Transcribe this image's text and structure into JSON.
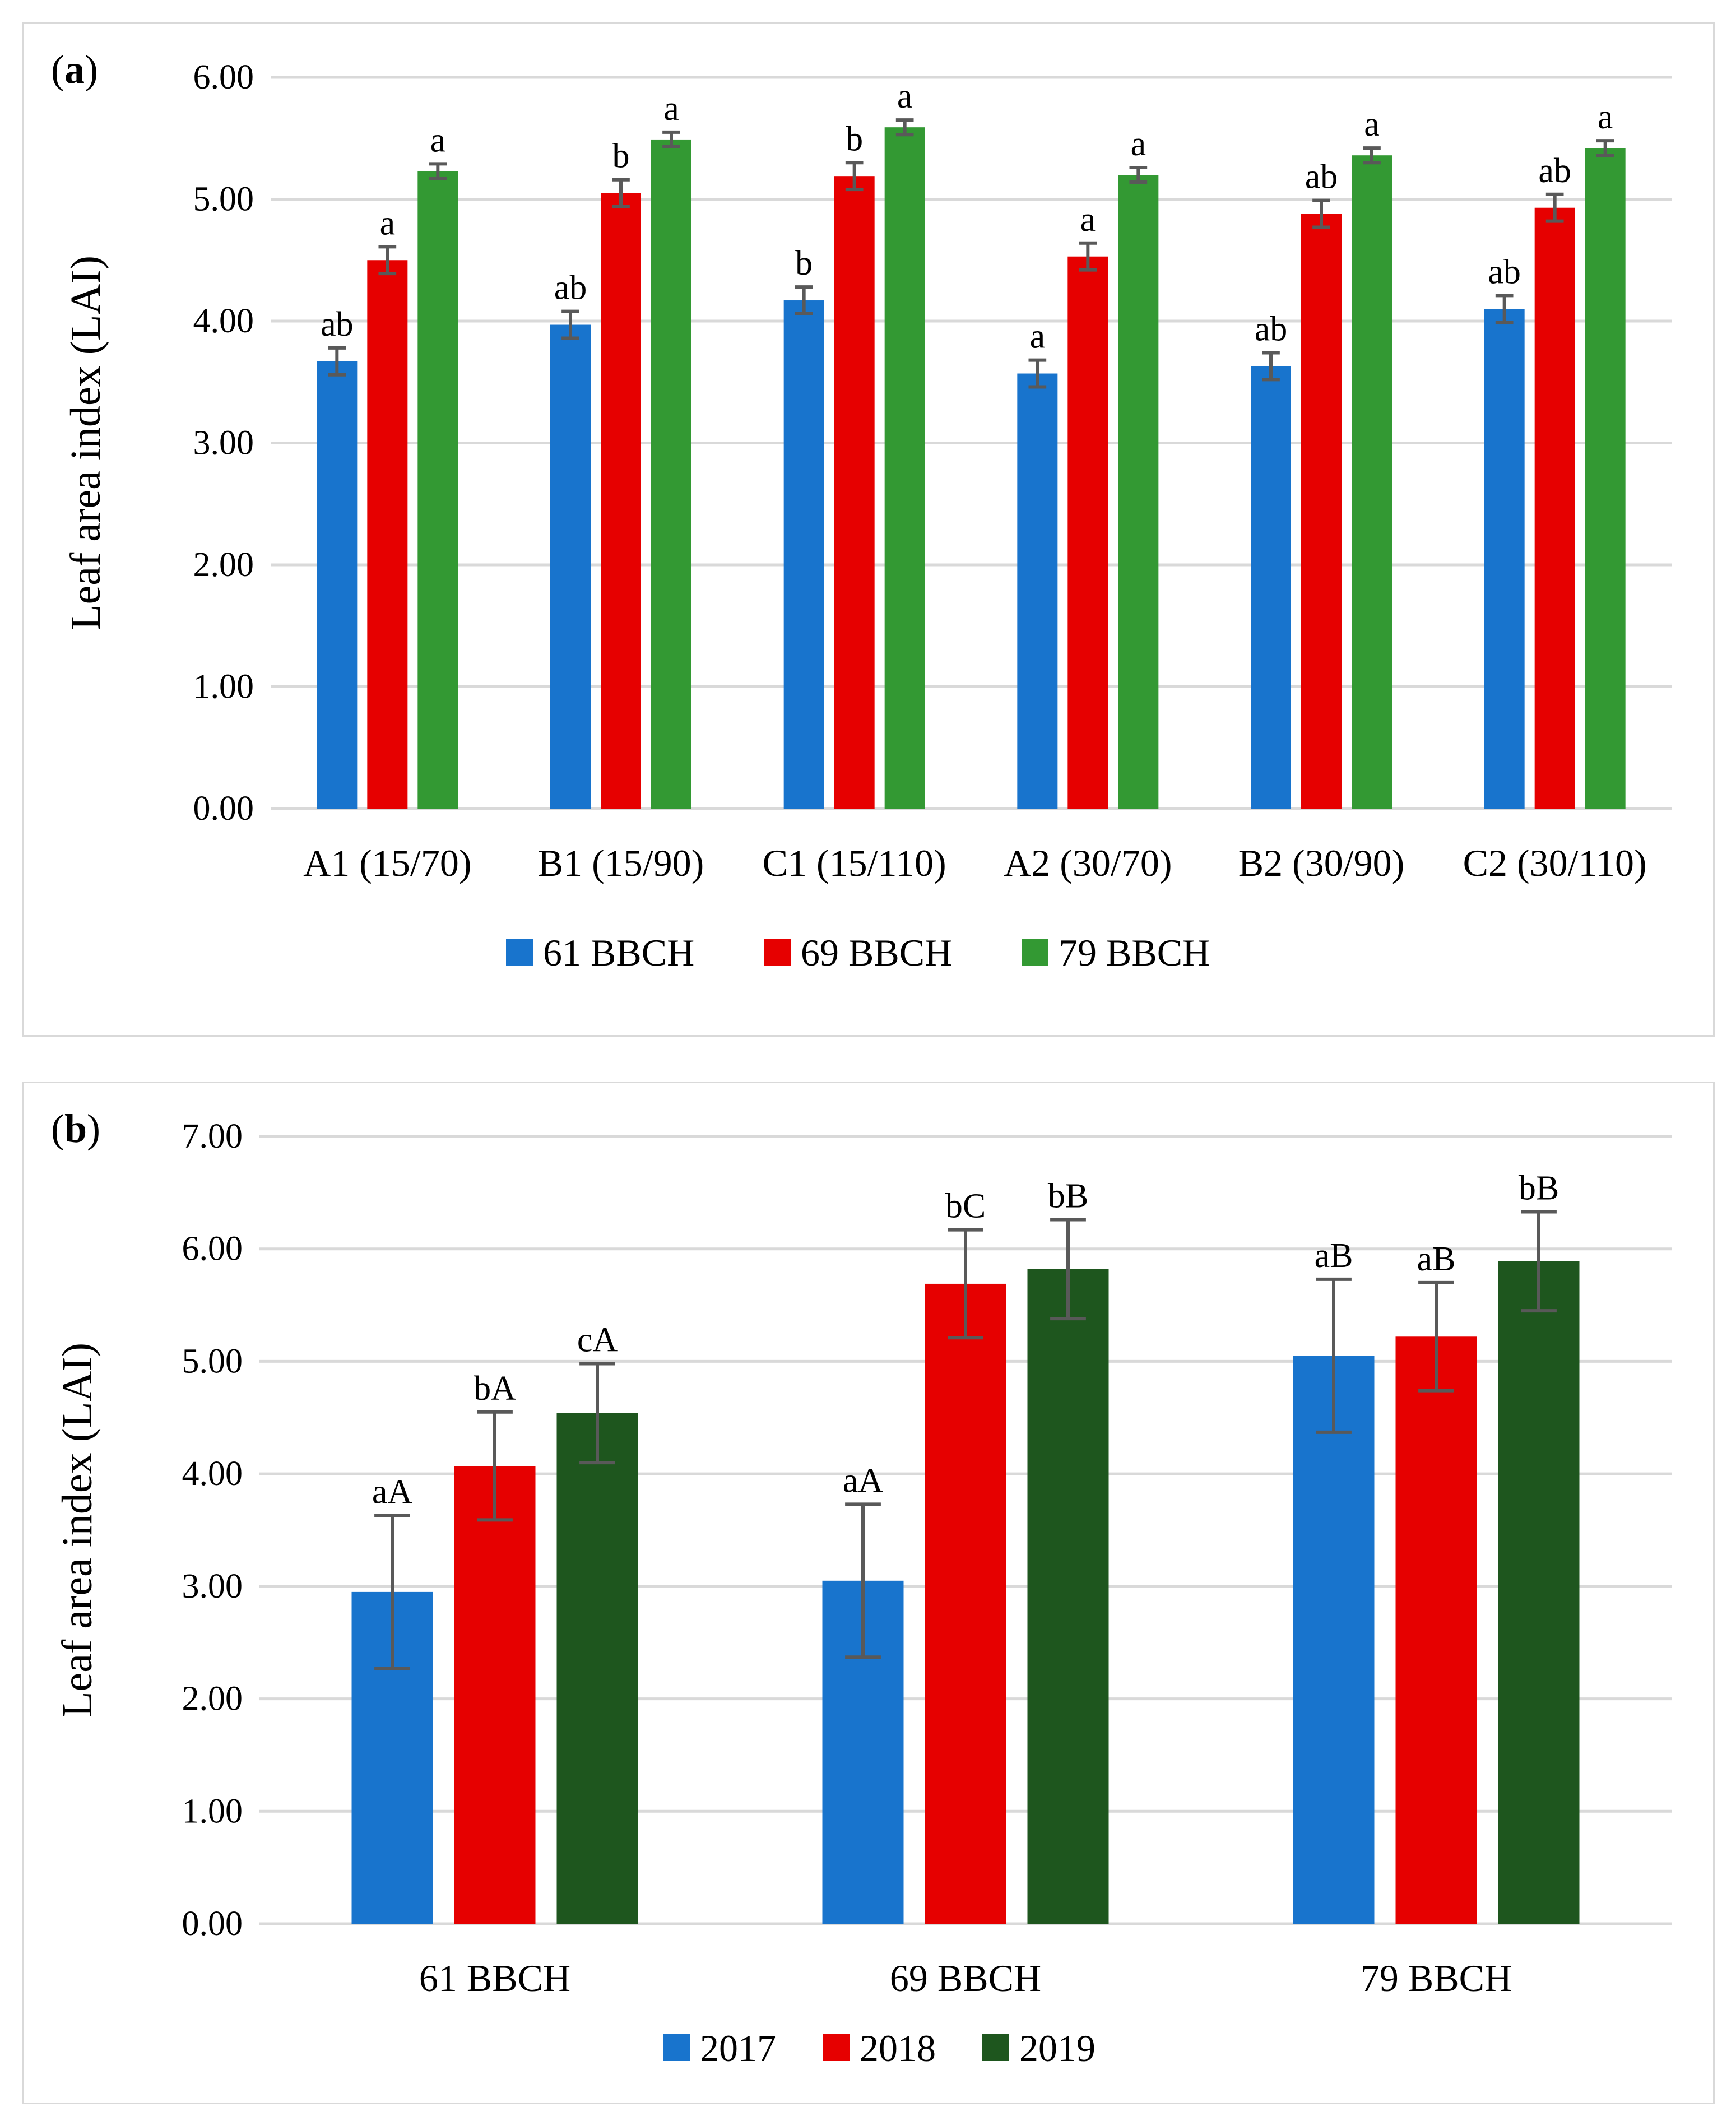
{
  "chart_data": [
    {
      "panel": "a",
      "type": "bar",
      "ylabel": "Leaf area index (LAI)",
      "ylim": [
        0,
        6
      ],
      "yticks": [
        "0.00",
        "1.00",
        "2.00",
        "3.00",
        "4.00",
        "5.00",
        "6.00"
      ],
      "categories": [
        "A1 (15/70)",
        "B1 (15/90)",
        "C1 (15/110)",
        "A2 (30/70)",
        "B2 (30/90)",
        "C2 (30/110)"
      ],
      "series": [
        {
          "name": "61 BBCH",
          "color": "#1874cd",
          "values": [
            3.67,
            3.97,
            4.17,
            3.57,
            3.63,
            4.1
          ],
          "errors": [
            0.11,
            0.11,
            0.11,
            0.11,
            0.11,
            0.11
          ],
          "labels": [
            "ab",
            "ab",
            "b",
            "a",
            "ab",
            "ab"
          ]
        },
        {
          "name": "69 BBCH",
          "color": "#e60000",
          "values": [
            4.5,
            5.05,
            5.19,
            4.53,
            4.88,
            4.93
          ],
          "errors": [
            0.11,
            0.11,
            0.11,
            0.11,
            0.11,
            0.11
          ],
          "labels": [
            "a",
            "b",
            "b",
            "a",
            "ab",
            "ab"
          ]
        },
        {
          "name": "79 BBCH",
          "color": "#339933",
          "values": [
            5.23,
            5.49,
            5.59,
            5.2,
            5.36,
            5.42
          ],
          "errors": [
            0.06,
            0.06,
            0.06,
            0.06,
            0.06,
            0.06
          ],
          "labels": [
            "a",
            "a",
            "a",
            "a",
            "a",
            "a"
          ]
        }
      ],
      "legend_position": "bottom-center"
    },
    {
      "panel": "b",
      "type": "bar",
      "ylabel": "Leaf area index (LAI)",
      "ylim": [
        0,
        7
      ],
      "yticks": [
        "0.00",
        "1.00",
        "2.00",
        "3.00",
        "4.00",
        "5.00",
        "6.00",
        "7.00"
      ],
      "categories": [
        "61 BBCH",
        "69 BBCH",
        "79 BBCH"
      ],
      "series": [
        {
          "name": "2017",
          "color": "#1874cd",
          "values": [
            2.95,
            3.05,
            5.05
          ],
          "errors": [
            0.68,
            0.68,
            0.68
          ],
          "labels": [
            "aA",
            "aA",
            "aB"
          ]
        },
        {
          "name": "2018",
          "color": "#e60000",
          "values": [
            4.07,
            5.69,
            5.22
          ],
          "errors": [
            0.48,
            0.48,
            0.48
          ],
          "labels": [
            "bA",
            "bC",
            "aB"
          ]
        },
        {
          "name": "2019",
          "color": "#1e561e",
          "values": [
            4.54,
            5.82,
            5.89
          ],
          "errors": [
            0.44,
            0.44,
            0.44
          ],
          "labels": [
            "cA",
            "bB",
            "bB"
          ]
        }
      ],
      "legend_position": "bottom-center"
    }
  ],
  "panel_tags": {
    "a_letter": "a",
    "b_letter": "b",
    "open": "(",
    "close": ")"
  }
}
